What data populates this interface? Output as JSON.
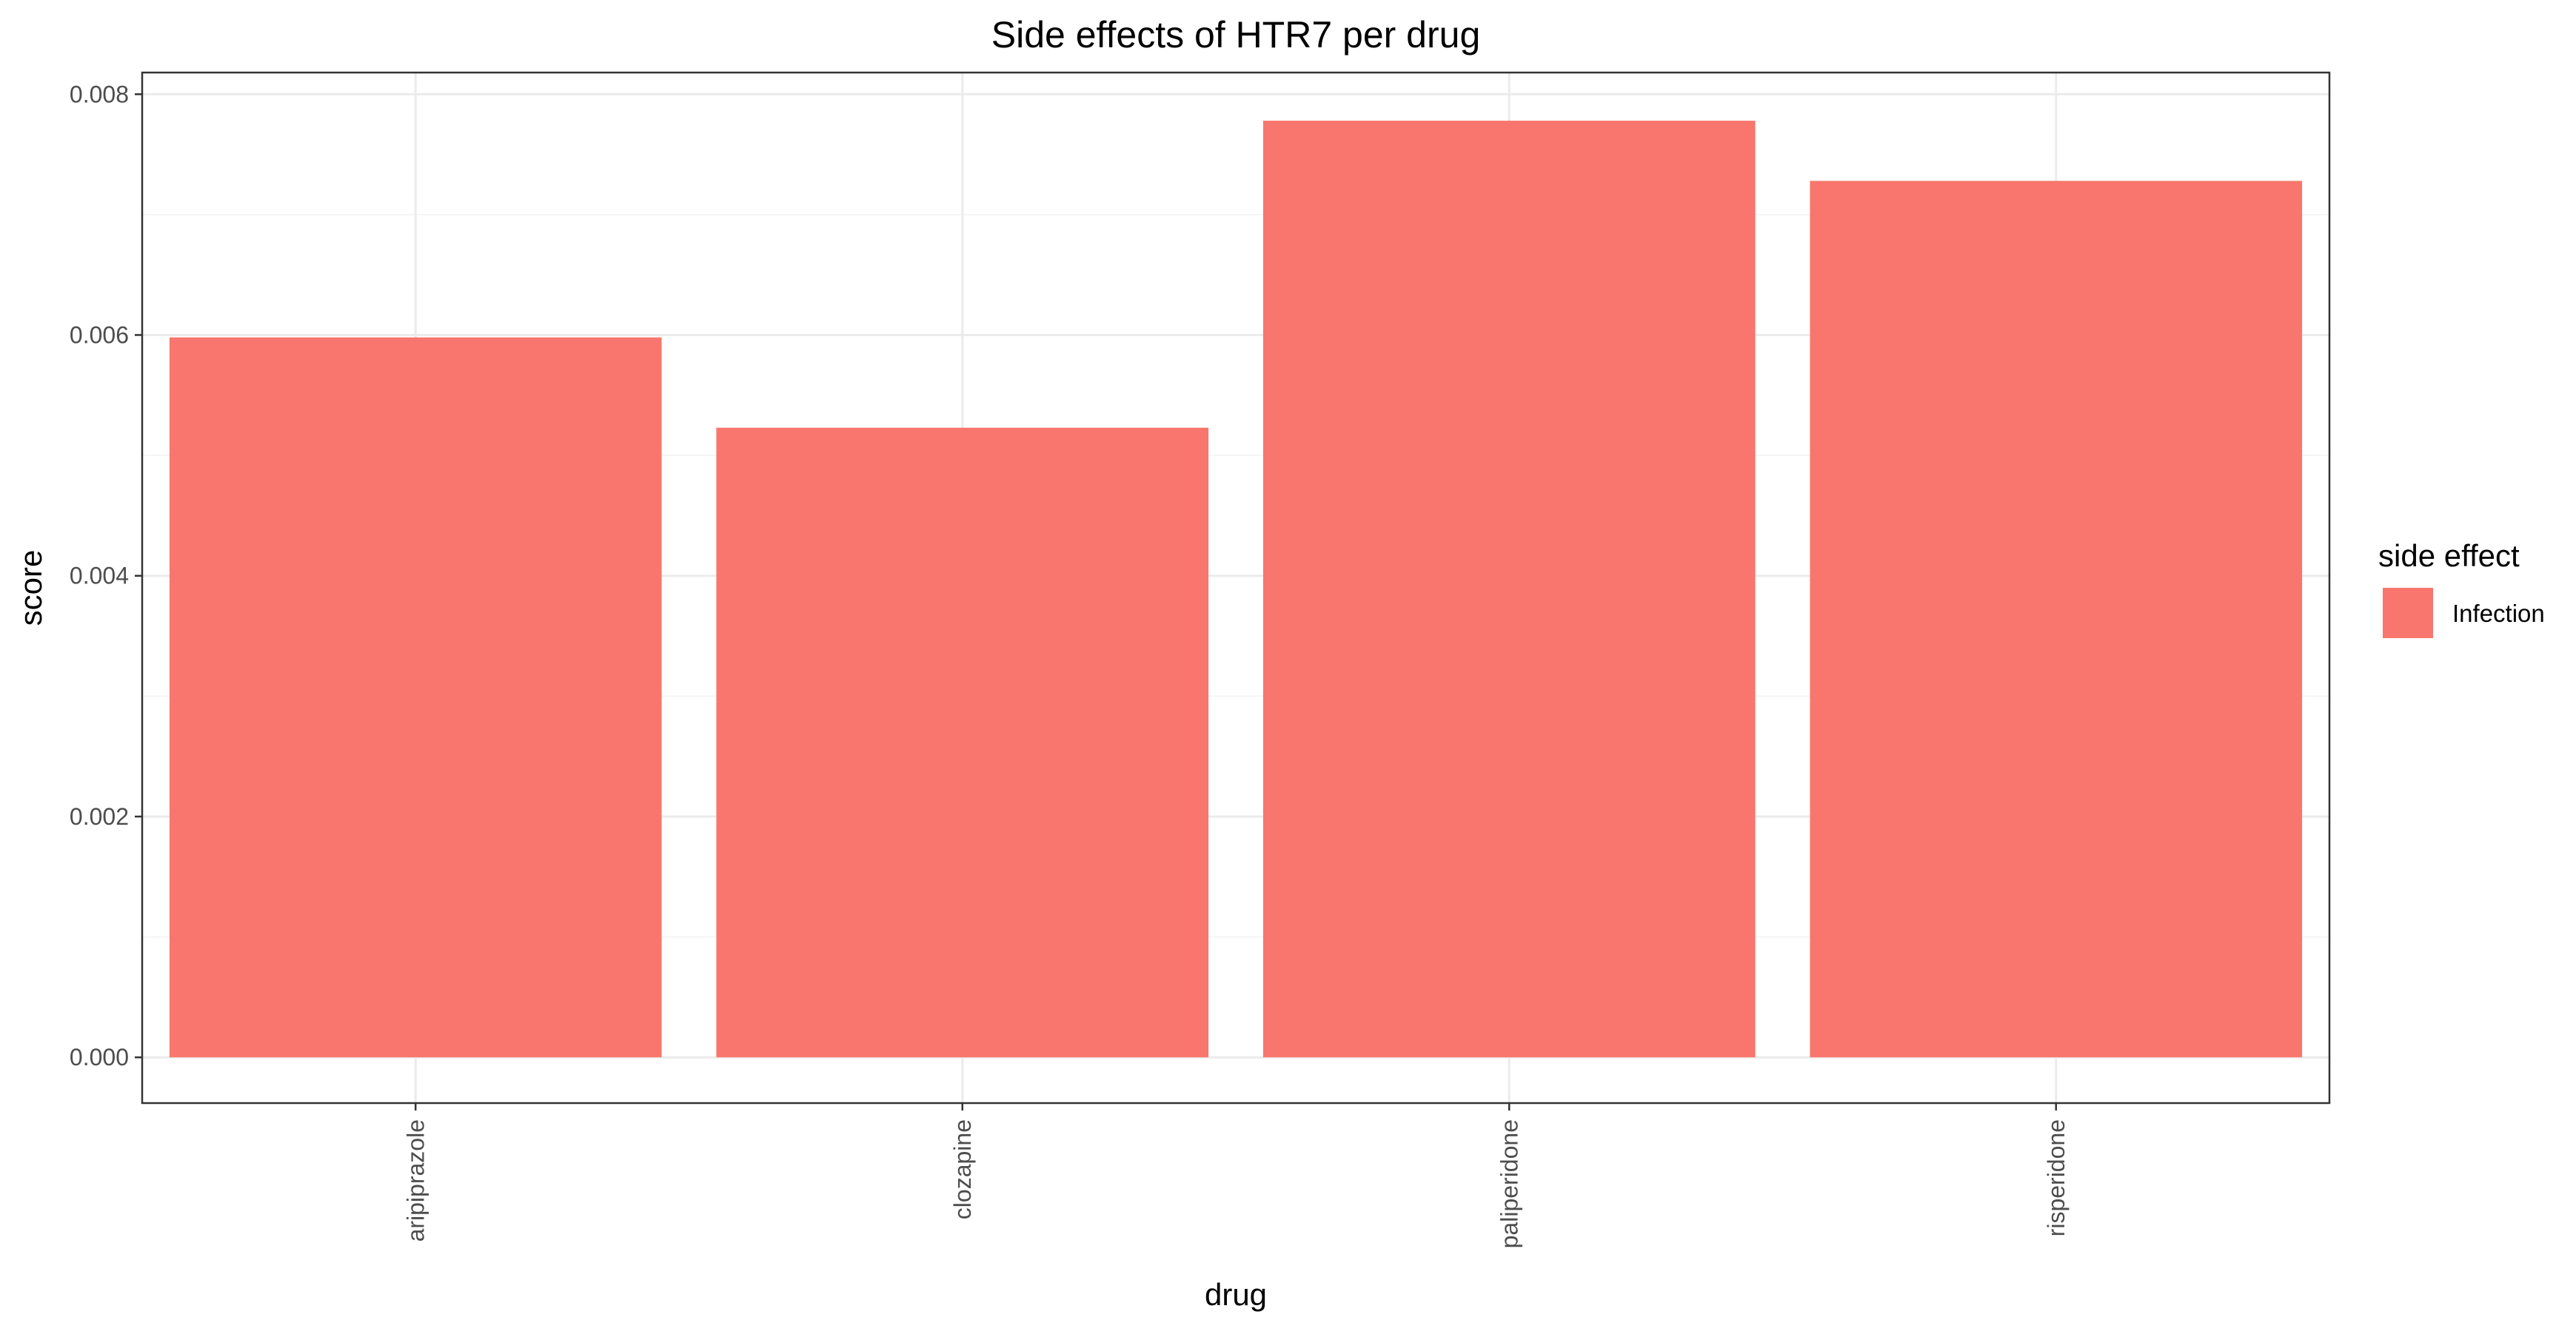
{
  "chart_data": {
    "type": "bar",
    "title": "Side effects of HTR7 per drug",
    "xlabel": "drug",
    "ylabel": "score",
    "categories": [
      "aripiprazole",
      "clozapine",
      "paliperidone",
      "risperidone"
    ],
    "series": [
      {
        "name": "Infection",
        "values": [
          0.00598,
          0.00523,
          0.00778,
          0.00728
        ],
        "color": "#f8766d"
      }
    ],
    "ylim": [
      -0.00038,
      0.00818
    ],
    "yticks": [
      0.0,
      0.002,
      0.004,
      0.006,
      0.008
    ],
    "ytick_labels": [
      "0.000",
      "0.002",
      "0.004",
      "0.006",
      "0.008"
    ],
    "grid": true,
    "legend": {
      "title": "side effect",
      "position": "right"
    }
  },
  "colors": {
    "bar": "#f8766d",
    "grid_major": "#ebebeb",
    "grid_minor": "#f5f5f5",
    "panel_border": "#333333",
    "background": "#ffffff"
  }
}
